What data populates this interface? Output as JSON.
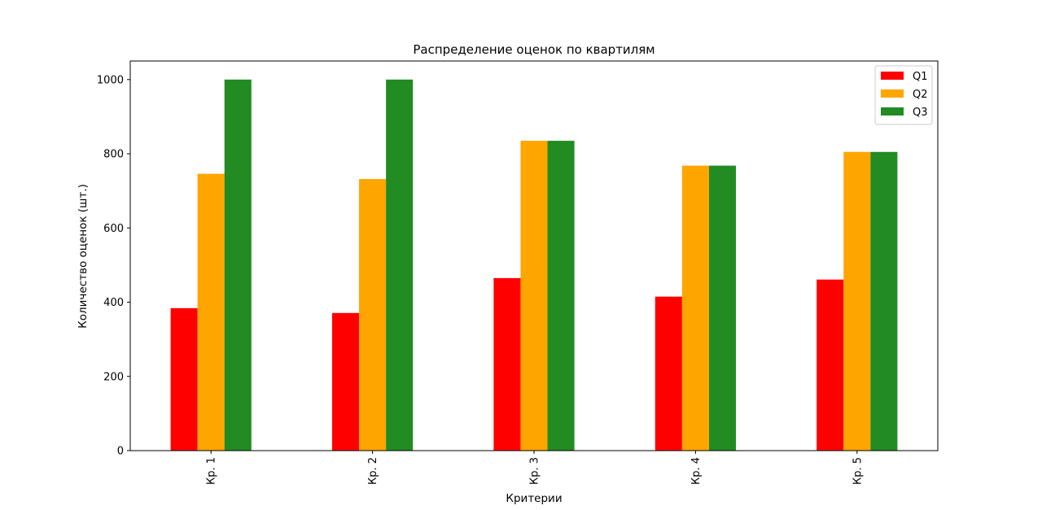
{
  "chart_data": {
    "type": "bar",
    "title": "Распределение оценок по квартилям",
    "xlabel": "Критерии",
    "ylabel": "Количество оценок (шт.)",
    "categories": [
      "Кр. 1",
      "Кр. 2",
      "Кр. 3",
      "Кр. 4",
      "Кр. 5"
    ],
    "series": [
      {
        "name": "Q1",
        "color": "#ff0000",
        "values": [
          384,
          371,
          465,
          415,
          461
        ]
      },
      {
        "name": "Q2",
        "color": "#ffa500",
        "values": [
          746,
          732,
          835,
          768,
          805
        ]
      },
      {
        "name": "Q3",
        "color": "#228b22",
        "values": [
          1000,
          1000,
          835,
          768,
          805
        ]
      }
    ],
    "ylim": [
      0,
      1050
    ],
    "yticks": [
      0,
      200,
      400,
      600,
      800,
      1000
    ],
    "xtick_rotation": "vertical",
    "grid": false,
    "legend_position": "top-right"
  }
}
